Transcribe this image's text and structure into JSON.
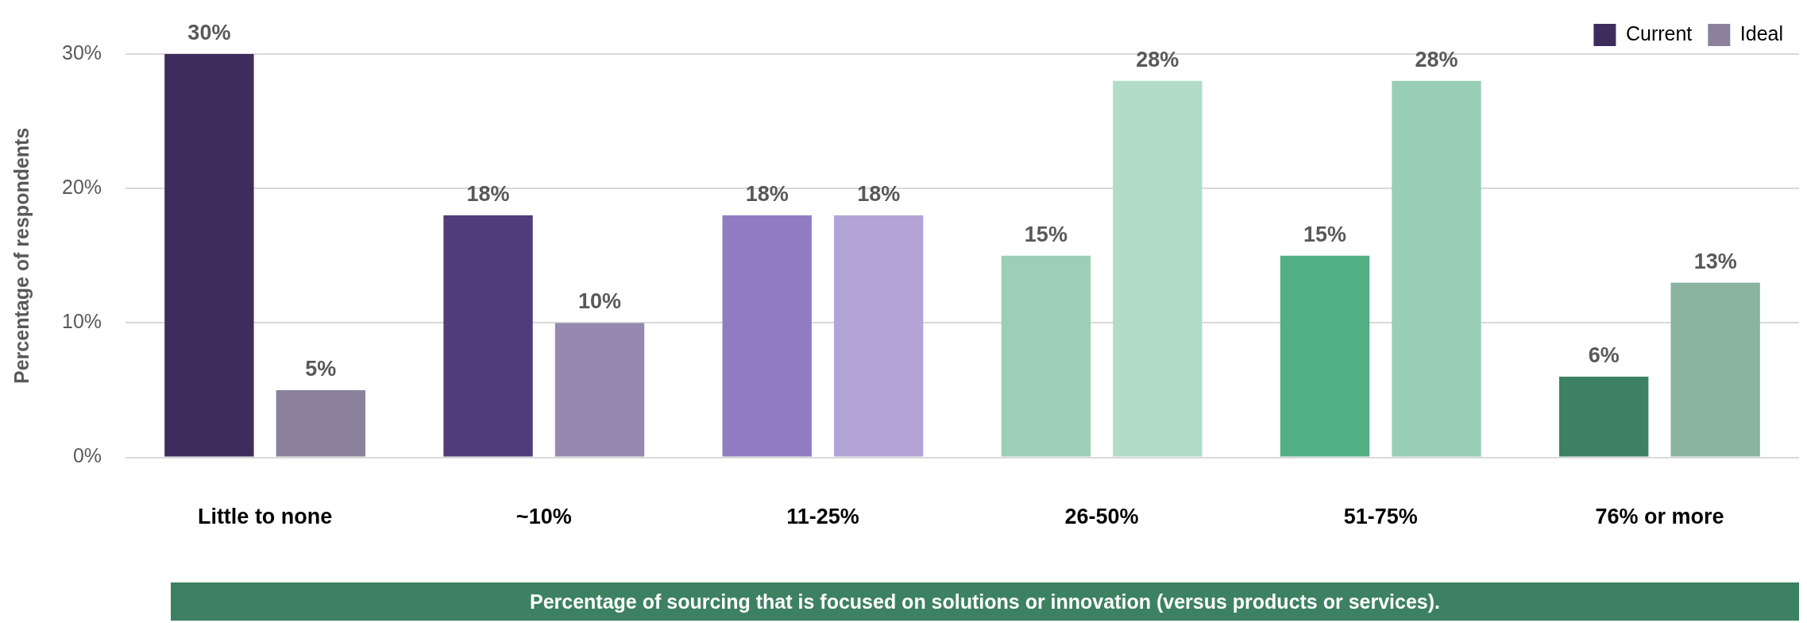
{
  "chart_data": {
    "type": "bar",
    "categories": [
      "Little to none",
      "~10%",
      "11-25%",
      "26-50%",
      "51-75%",
      "76% or more"
    ],
    "series": [
      {
        "name": "Current",
        "color": "#3e2d5c",
        "colors": [
          "#3e2d5c",
          "#503b7b",
          "#917cc2",
          "#9ccfb5",
          "#52ae83",
          "#3c8161"
        ],
        "values": [
          30,
          18,
          18,
          15,
          15,
          6
        ],
        "value_labels": [
          "30%",
          "18%",
          "18%",
          "15%",
          "15%",
          "6%"
        ]
      },
      {
        "name": "Ideal",
        "color": "#8b819d",
        "colors": [
          "#8b819d",
          "#9689b0",
          "#b2a4d4",
          "#b2dcc8",
          "#97ceb5",
          "#8ab3a0"
        ],
        "values": [
          5,
          10,
          18,
          28,
          28,
          13
        ],
        "value_labels": [
          "5%",
          "10%",
          "18%",
          "28%",
          "28%",
          "13%"
        ]
      }
    ],
    "ylabel": "Percentage of respondents",
    "xlabel": "Percentage of sourcing that is focused on solutions or innovation (versus products or services).",
    "ylim": [
      0,
      30
    ],
    "yticks": [
      {
        "value": 0,
        "label": "0%"
      },
      {
        "value": 10,
        "label": "10%"
      },
      {
        "value": 20,
        "label": "20%"
      },
      {
        "value": 30,
        "label": "30%"
      }
    ],
    "grid": "y",
    "legend": "top right"
  }
}
